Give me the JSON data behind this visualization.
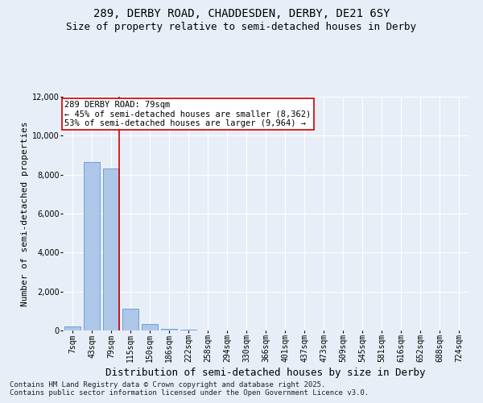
{
  "title_line1": "289, DERBY ROAD, CHADDESDEN, DERBY, DE21 6SY",
  "title_line2": "Size of property relative to semi-detached houses in Derby",
  "xlabel": "Distribution of semi-detached houses by size in Derby",
  "ylabel": "Number of semi-detached properties",
  "categories": [
    "7sqm",
    "43sqm",
    "79sqm",
    "115sqm",
    "150sqm",
    "186sqm",
    "222sqm",
    "258sqm",
    "294sqm",
    "330sqm",
    "366sqm",
    "401sqm",
    "437sqm",
    "473sqm",
    "509sqm",
    "545sqm",
    "581sqm",
    "616sqm",
    "652sqm",
    "688sqm",
    "724sqm"
  ],
  "values": [
    200,
    8650,
    8300,
    1100,
    320,
    90,
    30,
    0,
    0,
    0,
    0,
    0,
    0,
    0,
    0,
    0,
    0,
    0,
    0,
    0,
    0
  ],
  "bar_color": "#aec6e8",
  "bar_edge_color": "#5b9bd5",
  "highlight_line_color": "#cc0000",
  "highlight_bar_index": 2,
  "annotation_line1": "289 DERBY ROAD: 79sqm",
  "annotation_line2": "← 45% of semi-detached houses are smaller (8,362)",
  "annotation_line3": "53% of semi-detached houses are larger (9,964) →",
  "annotation_box_facecolor": "#ffffff",
  "annotation_box_edgecolor": "#cc0000",
  "ylim": [
    0,
    12000
  ],
  "yticks": [
    0,
    2000,
    4000,
    6000,
    8000,
    10000,
    12000
  ],
  "background_color": "#e8eef7",
  "plot_bg_color": "#e8eef7",
  "footer_line1": "Contains HM Land Registry data © Crown copyright and database right 2025.",
  "footer_line2": "Contains public sector information licensed under the Open Government Licence v3.0.",
  "title_fontsize": 10,
  "subtitle_fontsize": 9,
  "xlabel_fontsize": 9,
  "ylabel_fontsize": 8,
  "tick_fontsize": 7,
  "annotation_fontsize": 7.5,
  "footer_fontsize": 6.5
}
